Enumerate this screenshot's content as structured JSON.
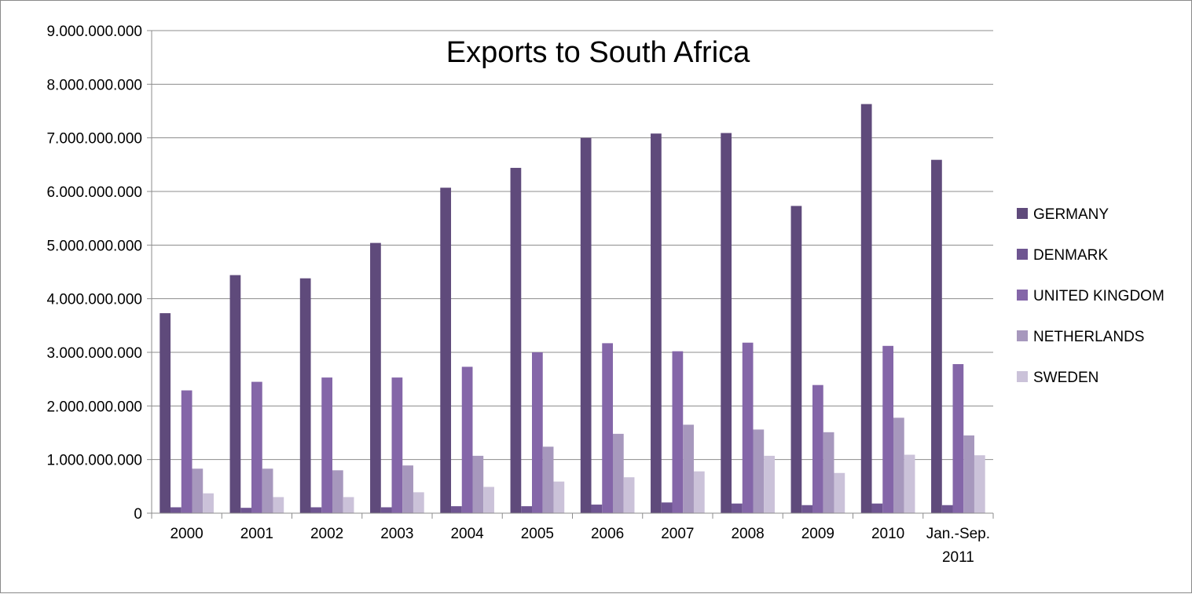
{
  "chart_data": {
    "type": "bar",
    "title": "Exports to South Africa",
    "categories": [
      "2000",
      "2001",
      "2002",
      "2003",
      "2004",
      "2005",
      "2006",
      "2007",
      "2008",
      "2009",
      "2010",
      "Jan.-Sep. 2011"
    ],
    "category_lines": [
      [
        "2000"
      ],
      [
        "2001"
      ],
      [
        "2002"
      ],
      [
        "2003"
      ],
      [
        "2004"
      ],
      [
        "2005"
      ],
      [
        "2006"
      ],
      [
        "2007"
      ],
      [
        "2008"
      ],
      [
        "2009"
      ],
      [
        "2010"
      ],
      [
        "Jan.-Sep.",
        "2011"
      ]
    ],
    "ylim": [
      0,
      9000000000
    ],
    "yticks": [
      0,
      1000000000,
      2000000000,
      3000000000,
      4000000000,
      5000000000,
      6000000000,
      7000000000,
      8000000000,
      9000000000
    ],
    "ytick_labels": [
      "0",
      "1.000.000.000",
      "2.000.000.000",
      "3.000.000.000",
      "4.000.000.000",
      "5.000.000.000",
      "6.000.000.000",
      "7.000.000.000",
      "8.000.000.000",
      "9.000.000.000"
    ],
    "grid": true,
    "legend_position": "right",
    "series": [
      {
        "name": "GERMANY",
        "color": "#5f4a7b",
        "values": [
          3730000000,
          4440000000,
          4380000000,
          5040000000,
          6070000000,
          6440000000,
          7000000000,
          7080000000,
          7090000000,
          5730000000,
          7630000000,
          6590000000
        ]
      },
      {
        "name": "DENMARK",
        "color": "#6e5591",
        "values": [
          110000000,
          100000000,
          110000000,
          110000000,
          130000000,
          130000000,
          160000000,
          200000000,
          180000000,
          150000000,
          180000000,
          150000000
        ]
      },
      {
        "name": "UNITED KINGDOM",
        "color": "#8466a8",
        "values": [
          2290000000,
          2450000000,
          2530000000,
          2530000000,
          2730000000,
          3000000000,
          3170000000,
          3020000000,
          3180000000,
          2390000000,
          3120000000,
          2780000000
        ]
      },
      {
        "name": "NETHERLANDS",
        "color": "#a798bd",
        "values": [
          830000000,
          830000000,
          800000000,
          890000000,
          1070000000,
          1240000000,
          1480000000,
          1650000000,
          1560000000,
          1510000000,
          1780000000,
          1450000000
        ]
      },
      {
        "name": "SWEDEN",
        "color": "#cbc2d9",
        "values": [
          370000000,
          300000000,
          300000000,
          390000000,
          490000000,
          590000000,
          670000000,
          780000000,
          1070000000,
          750000000,
          1090000000,
          1080000000
        ]
      }
    ]
  }
}
